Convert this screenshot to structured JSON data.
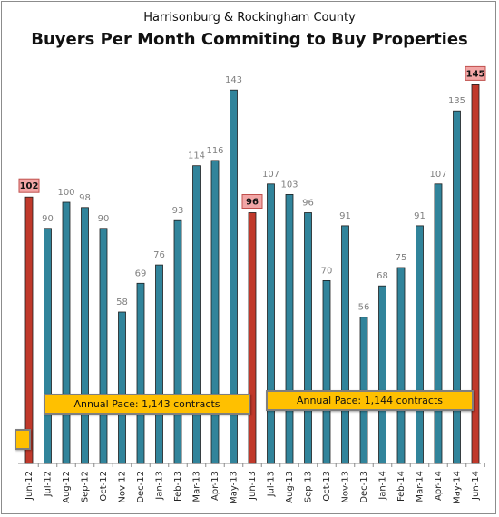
{
  "chart_data": {
    "type": "bar",
    "subtitle": "Harrisonburg & Rockingham County",
    "title": "Buyers Per Month Commiting to Buy Properties",
    "categories": [
      "Jun-12",
      "Jul-12",
      "Aug-12",
      "Sep-12",
      "Oct-12",
      "Nov-12",
      "Dec-12",
      "Jan-13",
      "Feb-13",
      "Mar-13",
      "Apr-13",
      "May-13",
      "Jun-13",
      "Jul-13",
      "Aug-13",
      "Sep-13",
      "Oct-13",
      "Nov-13",
      "Dec-13",
      "Jan-14",
      "Feb-14",
      "Mar-14",
      "Apr-14",
      "May-14",
      "Jun-14"
    ],
    "values": [
      102,
      90,
      100,
      98,
      90,
      58,
      69,
      76,
      93,
      114,
      116,
      143,
      96,
      107,
      103,
      96,
      70,
      91,
      56,
      68,
      75,
      91,
      107,
      135,
      145
    ],
    "highlighted": [
      "Jun-12",
      "Jun-13",
      "Jun-14"
    ],
    "ylim": [
      0,
      150
    ],
    "grid": false,
    "colors": {
      "normal": "#31849b",
      "highlight": "#c0392b",
      "label_box": "#f2a6a6",
      "pace_box": "#ffc000"
    },
    "annotations": [
      {
        "text": "Annual Pace: 1,143 contracts",
        "span": [
          "Jul-12",
          "May-13"
        ]
      },
      {
        "text": "Annual Pace: 1,144 contracts",
        "span": [
          "Jul-13",
          "Jun-14"
        ]
      }
    ]
  }
}
